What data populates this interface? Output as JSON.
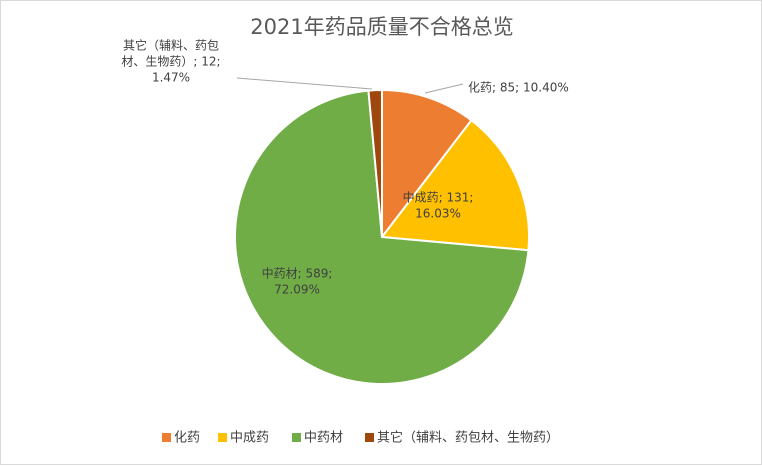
{
  "chart_data": {
    "type": "pie",
    "title": "2021年药品质量不合格总览",
    "slices": [
      {
        "name": "化药",
        "value": 85,
        "percent": "10.40%",
        "color": "#ED7D31",
        "label_lines": [
          "化药; 85; 10.40%"
        ]
      },
      {
        "name": "中成药",
        "value": 131,
        "percent": "16.03%",
        "color": "#FFC000",
        "label_lines": [
          "中成药; 131;",
          "16.03%"
        ]
      },
      {
        "name": "中药材",
        "value": 589,
        "percent": "72.09%",
        "color": "#70AD47",
        "label_lines": [
          "中药材; 589;",
          "72.09%"
        ]
      },
      {
        "name": "其它（辅料、药包材、生物药）",
        "value": 12,
        "percent": "1.47%",
        "color": "#9E480E",
        "label_lines": [
          "其它（辅料、药包",
          "材、生物药）; 12;",
          "1.47%"
        ]
      }
    ],
    "legend": {
      "position": "bottom",
      "items": [
        "化药",
        "中成药",
        "中药材",
        "其它（辅料、药包材、生物药）"
      ]
    }
  }
}
